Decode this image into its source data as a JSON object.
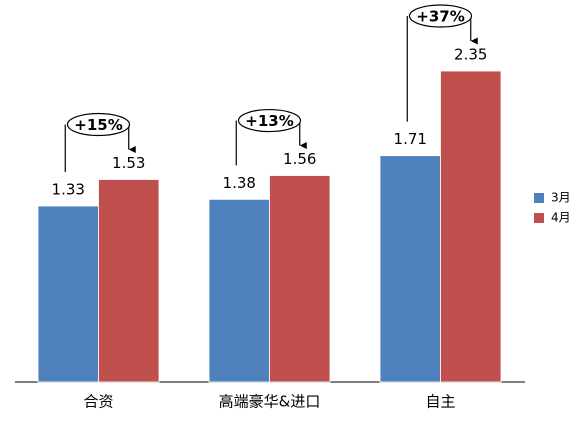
{
  "chart_data": {
    "type": "bar",
    "categories": [
      "合资",
      "高端豪华&进口",
      "自主"
    ],
    "series": [
      {
        "name": "3月",
        "color": "#4f81bd",
        "values": [
          1.33,
          1.38,
          1.71
        ]
      },
      {
        "name": "4月",
        "color": "#c0504d",
        "values": [
          1.53,
          1.56,
          2.35
        ]
      }
    ],
    "annotations": [
      "+15%",
      "+13%",
      "+37%"
    ],
    "legend": "right"
  }
}
